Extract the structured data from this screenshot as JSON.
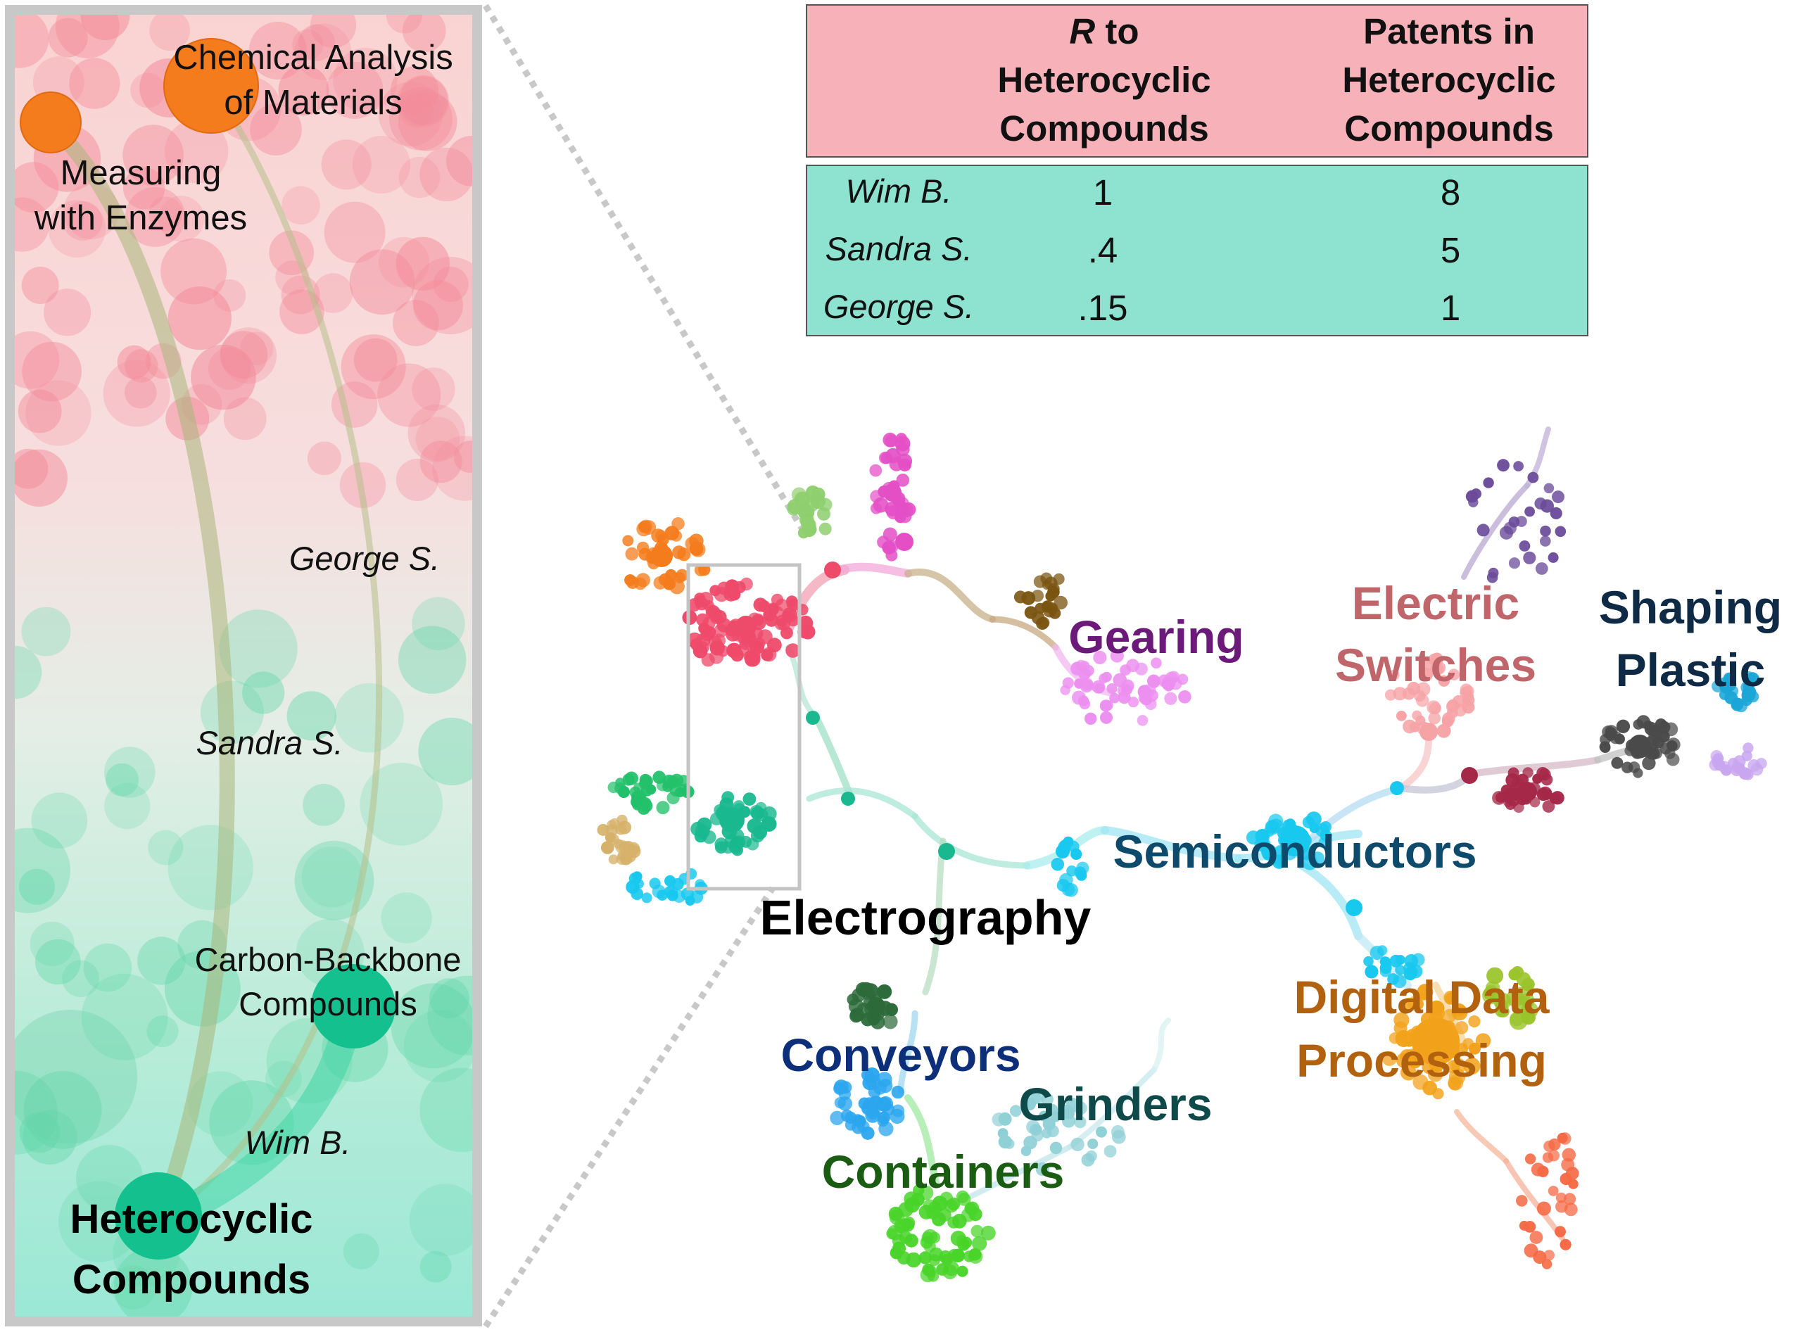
{
  "colors": {
    "inset_border": "#c8c8c8",
    "table_header_bg": "#f6b1b9",
    "table_body_bg": "#8ee3d0",
    "orange_node": "#f47c1c",
    "teal_node": "#14c08e"
  },
  "table": {
    "header": {
      "col1": {
        "prefix": "R",
        "line1": " to",
        "line2": "Heterocyclic",
        "line3": "Compounds"
      },
      "col2": {
        "line1": "Patents in",
        "line2": "Heterocyclic",
        "line3": "Compounds"
      }
    },
    "rows": [
      {
        "name": "Wim B.",
        "r": "1",
        "patents": "8"
      },
      {
        "name": "Sandra S.",
        "r": ".4",
        "patents": "5"
      },
      {
        "name": "George S.",
        "r": ".15",
        "patents": "1"
      }
    ]
  },
  "inset": {
    "chem_analysis_1": "Chemical Analysis",
    "chem_analysis_2": "of Materials",
    "enzymes_1": "Measuring",
    "enzymes_2": "with Enzymes",
    "george": "George S.",
    "sandra": "Sandra S.",
    "carbon_1": "Carbon-Backbone",
    "carbon_2": "Compounds",
    "wim": "Wim B.",
    "hetero_1": "Heterocyclic",
    "hetero_2": "Compounds"
  },
  "map_labels": {
    "gearing": {
      "text": "Gearing",
      "color": "#6b1a7a"
    },
    "electric_1": {
      "text": "Electric",
      "color": "#c0656a"
    },
    "electric_2": {
      "text": "Switches",
      "color": "#c0656a"
    },
    "shaping_1": {
      "text": "Shaping",
      "color": "#0f2a45"
    },
    "shaping_2": {
      "text": "Plastic",
      "color": "#0f2a45"
    },
    "semiconductors": {
      "text": "Semiconductors",
      "color": "#0d4a6b"
    },
    "electrography": {
      "text": "Electrography",
      "color": "#000000"
    },
    "digital_1": {
      "text": "Digital Data",
      "color": "#b2620e"
    },
    "digital_2": {
      "text": "Processing",
      "color": "#b2620e"
    },
    "conveyors": {
      "text": "Conveyors",
      "color": "#0d2f7a"
    },
    "grinders": {
      "text": "Grinders",
      "color": "#0f4a4a"
    },
    "containers": {
      "text": "Containers",
      "color": "#1a5c12"
    }
  },
  "clusters": [
    {
      "id": "orange",
      "color": "#f47c1c"
    },
    {
      "id": "red",
      "color": "#ee4a6a"
    },
    {
      "id": "lightgreen",
      "color": "#8fcf6f"
    },
    {
      "id": "pink",
      "color": "#e44fc6"
    },
    {
      "id": "brown",
      "color": "#7a5410"
    },
    {
      "id": "violet",
      "color": "#ec8ff0"
    },
    {
      "id": "green",
      "color": "#22c06a"
    },
    {
      "id": "teal",
      "color": "#19b88f"
    },
    {
      "id": "tan",
      "color": "#d6b16a"
    },
    {
      "id": "cyan",
      "color": "#18c8ef"
    },
    {
      "id": "darkgreen",
      "color": "#2c6a3a"
    },
    {
      "id": "blue",
      "color": "#2ba6ee"
    },
    {
      "id": "lime",
      "color": "#48d428"
    },
    {
      "id": "paleteal",
      "color": "#8fd0d6"
    },
    {
      "id": "purple",
      "color": "#6a4b9a"
    },
    {
      "id": "salmon",
      "color": "#f6a3a6"
    },
    {
      "id": "maroon",
      "color": "#a52848"
    },
    {
      "id": "charcoal",
      "color": "#4a4a4a"
    },
    {
      "id": "lavender",
      "color": "#c9a6f0"
    },
    {
      "id": "skyblue",
      "color": "#1aa6d6"
    },
    {
      "id": "amber",
      "color": "#f2a21a"
    },
    {
      "id": "olive",
      "color": "#9ac42a"
    },
    {
      "id": "coral",
      "color": "#f56a45"
    }
  ]
}
